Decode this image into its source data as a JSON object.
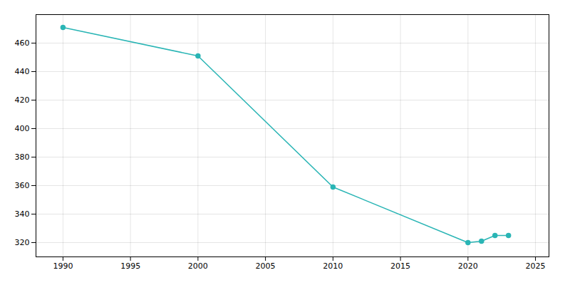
{
  "chart_data": {
    "type": "line",
    "x": [
      1990,
      2000,
      2010,
      2020,
      2021,
      2022,
      2023
    ],
    "values": [
      471,
      451,
      359,
      320,
      321,
      325,
      325
    ],
    "color": "#2ab5b5",
    "marker": "circle",
    "xlim": [
      1988,
      2026
    ],
    "ylim": [
      310,
      480
    ],
    "xticks": [
      1990,
      1995,
      2000,
      2005,
      2010,
      2015,
      2020,
      2025
    ],
    "yticks": [
      320,
      340,
      360,
      380,
      400,
      420,
      440,
      460
    ],
    "grid": true
  }
}
